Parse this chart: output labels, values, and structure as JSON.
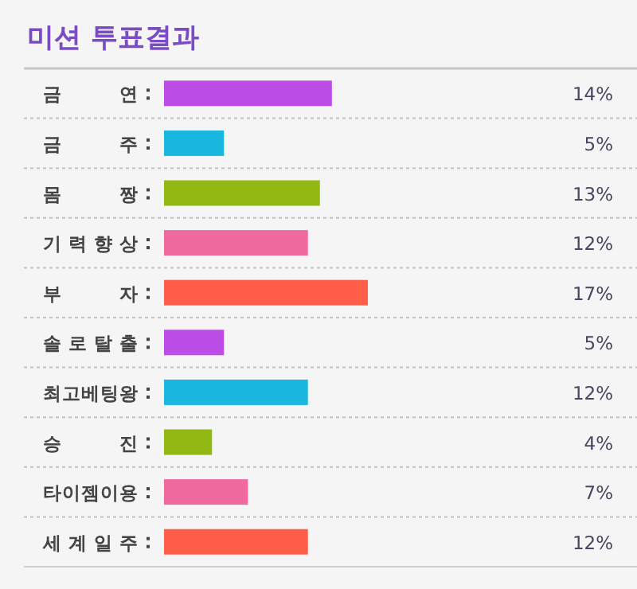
{
  "chart_data": {
    "type": "bar",
    "orientation": "horizontal",
    "title": "미션 투표결과",
    "categories": [
      "금연",
      "금주",
      "몸짱",
      "기력향상",
      "부자",
      "솔로탈출",
      "최고베팅왕",
      "승진",
      "타이젬이용",
      "세계일주"
    ],
    "values": [
      14,
      5,
      13,
      12,
      17,
      5,
      12,
      4,
      7,
      12
    ],
    "value_labels": [
      "14%",
      "5%",
      "13%",
      "12%",
      "17%",
      "5%",
      "12%",
      "4%",
      "7%",
      "12%"
    ],
    "colors": [
      "#bb4de6",
      "#1ab8e0",
      "#92b814",
      "#f06aa0",
      "#ff5e4a",
      "#bb4de6",
      "#1ab8e0",
      "#92b814",
      "#f06aa0",
      "#ff5e4a"
    ]
  }
}
